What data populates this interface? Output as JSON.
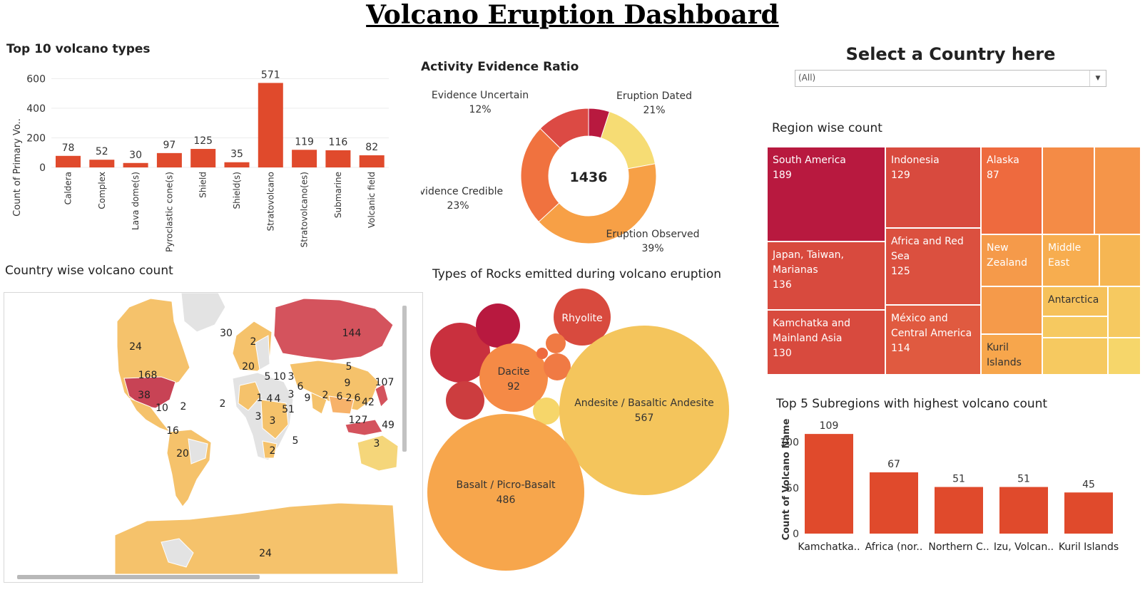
{
  "title": "Volcano Eruption Dashboard",
  "colors": {
    "bar": "#e04a2c",
    "deep": "#b8193f",
    "red": "#cc3d3f",
    "orange": "#f0723f",
    "lightorange": "#f7a046",
    "yellow": "#f4c55c",
    "paleyellow": "#f6dc74"
  },
  "volcano_types": {
    "title": "Top 10 volcano types",
    "ylabel": "Count of Primary Vo..",
    "yticks": [
      "600",
      "400",
      "200",
      "0"
    ]
  },
  "activity": {
    "title": "Activity Evidence Ratio",
    "total": "1436"
  },
  "country_selector": {
    "title": "Select a Country here",
    "value": "(All)"
  },
  "region": {
    "title": "Region wise count"
  },
  "country_map": {
    "title": "Country wise volcano count",
    "labels": [
      "24",
      "30",
      "2",
      "144",
      "168",
      "38",
      "10",
      "2",
      "2",
      "16",
      "20",
      "20",
      "5",
      "10",
      "3",
      "6",
      "5",
      "9",
      "3",
      "1",
      "4",
      "4",
      "2",
      "6",
      "2",
      "6",
      "42",
      "107",
      "9",
      "51",
      "3",
      "3",
      "127",
      "49",
      "2",
      "5",
      "3",
      "24"
    ]
  },
  "rocks": {
    "title": "Types of Rocks emitted during volcano eruption"
  },
  "subregions": {
    "title": "Top 5 Subregions with highest volcano count",
    "ylabel": "Count of Volcano Name",
    "yticks": [
      "100",
      "50",
      "0"
    ]
  },
  "chart_data": [
    {
      "type": "bar",
      "title": "Top 10 volcano types",
      "ylabel": "Count of Primary Vo..",
      "categories": [
        "Caldera",
        "Complex",
        "Lava dome(s)",
        "Pyroclastic cone(s)",
        "Shield",
        "Shield(s)",
        "Stratovolcano",
        "Stratovolcano(es)",
        "Submarine",
        "Volcanic field"
      ],
      "values": [
        78,
        52,
        30,
        97,
        125,
        35,
        571,
        119,
        116,
        82
      ],
      "ylim": [
        0,
        650
      ],
      "grid": true
    },
    {
      "type": "pie",
      "title": "Activity Evidence Ratio",
      "center_label": "1436",
      "categories": [
        "Eruption Dated",
        "Eruption Observed",
        "Evidence Credible",
        "Evidence Uncertain"
      ],
      "values": [
        21,
        39,
        23,
        12
      ],
      "value_labels": [
        "21%",
        "39%",
        "23%",
        "12%"
      ]
    },
    {
      "type": "treemap",
      "title": "Region wise count",
      "categories": [
        "South America",
        "Indonesia",
        "Alaska",
        "Japan, Taiwan, Marianas",
        "Africa and Red Sea",
        "New Zealand",
        "Middle East",
        "Antarctica",
        "Kamchatka and Mainland Asia",
        "México and Central America",
        "Kuril Islands"
      ],
      "values": [
        189,
        129,
        87,
        136,
        125,
        null,
        null,
        null,
        130,
        114,
        null
      ]
    },
    {
      "type": "bubble",
      "title": "Types of Rocks emitted during volcano eruption",
      "categories": [
        "Andesite / Basaltic Andesite",
        "Basalt / Picro-Basalt",
        "Dacite",
        "Rhyolite"
      ],
      "values": [
        567,
        486,
        92,
        null
      ]
    },
    {
      "type": "bar",
      "title": "Top 5 Subregions with highest volcano count",
      "ylabel": "Count of Volcano Name",
      "categories": [
        "Kamchatka..",
        "Africa (nor..",
        "Northern C..",
        "Izu, Volcan..",
        "Kuril Islands"
      ],
      "values": [
        109,
        67,
        51,
        51,
        45
      ],
      "ylim": [
        0,
        120
      ]
    }
  ]
}
